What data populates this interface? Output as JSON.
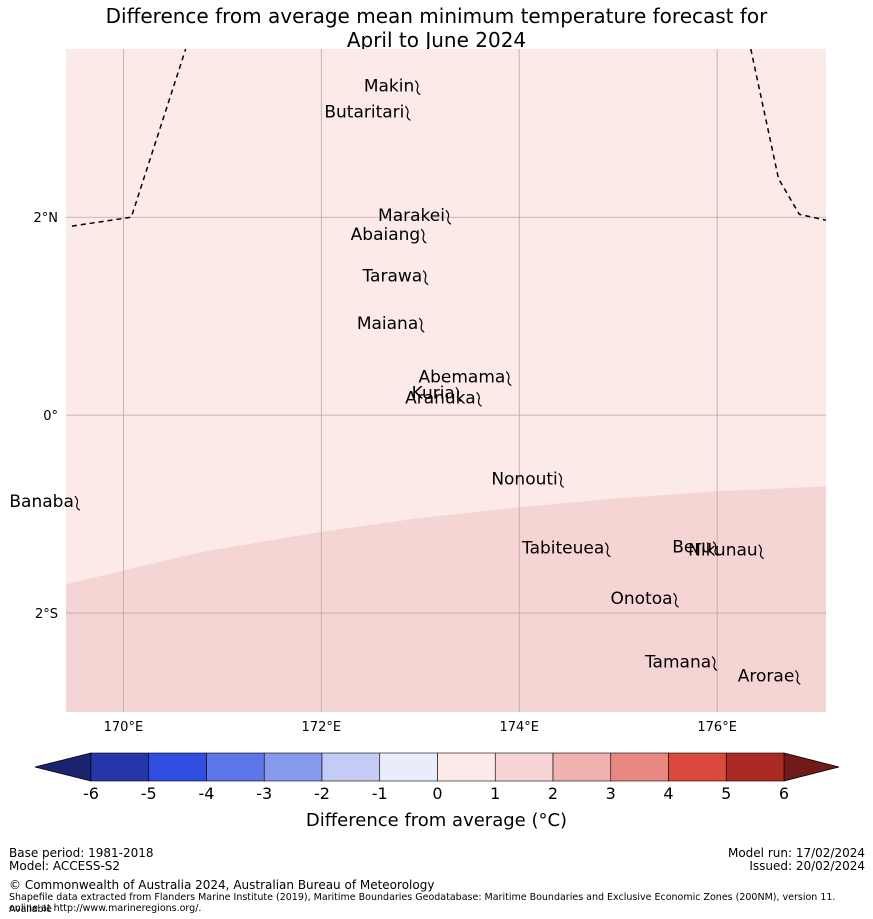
{
  "title": {
    "line1": "Difference from average mean minimum temperature forecast for",
    "line2": "April to June 2024"
  },
  "map": {
    "lat_range": [
      -3.0,
      3.7
    ],
    "lon_range": [
      169.42,
      177.1
    ],
    "gridlines": true,
    "lat_ticks": [
      {
        "value": 2,
        "label": "2°N"
      },
      {
        "value": 0,
        "label": "0°"
      },
      {
        "value": -2,
        "label": "2°S"
      }
    ],
    "lon_ticks": [
      {
        "value": 170,
        "label": "170°E"
      },
      {
        "value": 172,
        "label": "172°E"
      },
      {
        "value": 174,
        "label": "174°E"
      },
      {
        "value": 176,
        "label": "176°E"
      }
    ],
    "regions": [
      {
        "category": "0 to 1",
        "color": "#fbeae8",
        "area": "north of boundary"
      },
      {
        "category": "1 to 2",
        "color": "#f5d5d3",
        "area": "south of boundary"
      }
    ],
    "category_boundary": [
      {
        "lon": 169.42,
        "lat": -1.71
      },
      {
        "lon": 170.8,
        "lat": -1.38
      },
      {
        "lon": 172.0,
        "lat": -1.18
      },
      {
        "lon": 173.0,
        "lat": -1.04
      },
      {
        "lon": 174.0,
        "lat": -0.93
      },
      {
        "lon": 175.0,
        "lat": -0.84
      },
      {
        "lon": 176.0,
        "lat": -0.77
      },
      {
        "lon": 177.1,
        "lat": -0.72
      }
    ],
    "eez_lines": [
      [
        {
          "lon": 169.48,
          "lat": 1.91
        },
        {
          "lon": 170.08,
          "lat": 2.0
        },
        {
          "lon": 170.63,
          "lat": 3.7
        }
      ],
      [
        {
          "lon": 176.34,
          "lat": 3.7
        },
        {
          "lon": 176.62,
          "lat": 2.39
        },
        {
          "lon": 176.83,
          "lat": 2.03
        },
        {
          "lon": 177.1,
          "lat": 1.97
        }
      ]
    ],
    "islands": [
      {
        "name": "Makin",
        "lon": 172.98,
        "lat": 3.32
      },
      {
        "name": "Butaritari",
        "lon": 172.88,
        "lat": 3.06
      },
      {
        "name": "Marakei",
        "lon": 173.29,
        "lat": 2.01
      },
      {
        "name": "Abaiang",
        "lon": 173.04,
        "lat": 1.82
      },
      {
        "name": "Tarawa",
        "lon": 173.06,
        "lat": 1.4
      },
      {
        "name": "Maiana",
        "lon": 173.02,
        "lat": 0.92
      },
      {
        "name": "Abemama",
        "lon": 173.9,
        "lat": 0.38
      },
      {
        "name": "Kuria",
        "lon": 173.39,
        "lat": 0.22
      },
      {
        "name": "Aranuka",
        "lon": 173.6,
        "lat": 0.17
      },
      {
        "name": "Nonouti",
        "lon": 174.43,
        "lat": -0.65
      },
      {
        "name": "Banaba",
        "lon": 169.54,
        "lat": -0.88
      },
      {
        "name": "Tabiteuea",
        "lon": 174.9,
        "lat": -1.35
      },
      {
        "name": "Beru",
        "lon": 175.99,
        "lat": -1.34
      },
      {
        "name": "Nikunau",
        "lon": 176.45,
        "lat": -1.37
      },
      {
        "name": "Onotoa",
        "lon": 175.59,
        "lat": -1.86
      },
      {
        "name": "Tamana",
        "lon": 175.98,
        "lat": -2.5
      },
      {
        "name": "Arorae",
        "lon": 176.82,
        "lat": -2.64
      }
    ]
  },
  "colorbar": {
    "label": "Difference from average ($^\\circ$C)",
    "label_text": "Difference from average (°C)",
    "ticks": [
      "-6",
      "-5",
      "-4",
      "-3",
      "-2",
      "-1",
      "0",
      "1",
      "2",
      "3",
      "4",
      "5",
      "6"
    ],
    "under_color": "#1a236e",
    "over_color": "#701a1a",
    "colors": [
      "#2536a8",
      "#2f4ee0",
      "#5d76e8",
      "#8799ec",
      "#c4cbf4",
      "#e9edfb",
      "#fbeae8",
      "#f5d5d3",
      "#efb2af",
      "#e88880",
      "#dc4a3f",
      "#ab2a24"
    ]
  },
  "footer": {
    "base_period": "Base period: 1981-2018",
    "model": "Model: ACCESS-S2",
    "model_run": "Model run: 17/02/2024",
    "issued": "Issued: 20/02/2024",
    "copyright": "© Commonwealth of Australia 2024, Australian Bureau of Meteorology",
    "shapefile_line1": "Shapefile data extracted from Flanders Marine Institute (2019), Maritime Boundaries Geodatabase: Maritime Boundaries and Exclusive Economic Zones (200NM), version 11. Available",
    "shapefile_line2": "online at http://www.marineregions.org/."
  }
}
